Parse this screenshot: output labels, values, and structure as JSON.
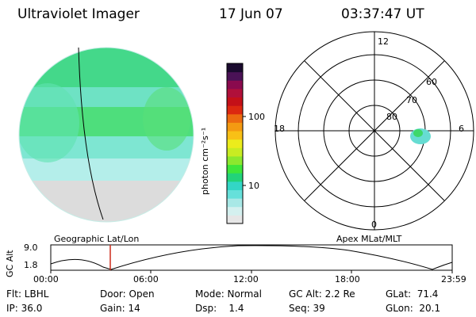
{
  "header": {
    "instrument": "Ultraviolet Imager",
    "date": "17 Jun 07",
    "time": "03:37:47 UT"
  },
  "colorbar": {
    "unit_label": "photon cm⁻²s⁻¹",
    "ticks": [
      "100",
      "10"
    ],
    "colors": [
      "#e6e6e6",
      "#d4f0ef",
      "#a8e8e6",
      "#66e0da",
      "#33d6c6",
      "#22d37a",
      "#3ee63a",
      "#8ce82e",
      "#c8ec22",
      "#ecec1c",
      "#f8c016",
      "#f49a12",
      "#ec6a10",
      "#dc2810",
      "#c41018",
      "#b0103a",
      "#8a0a4e",
      "#4a1256",
      "#1a0a2e"
    ]
  },
  "globe_panel": {
    "caption": "Geographic Lat/Lon"
  },
  "polar_panel": {
    "caption": "Apex MLat/MLT",
    "mlt_labels": {
      "top": "12",
      "left": "18",
      "right": "6",
      "bottom": "0"
    },
    "lat_labels": [
      "60",
      "70",
      "80"
    ]
  },
  "orbit_plot": {
    "ylabel": "GC Alt",
    "y_ticks": [
      "9.0",
      "1.8"
    ],
    "x_ticks": [
      "00:00",
      "06:00",
      "12:00",
      "18:00",
      "23:59"
    ],
    "current_time_marker": "03:37"
  },
  "info": {
    "flt": "Flt: LBHL",
    "ip": "IP: 36.0",
    "door": "Door: Open",
    "gain": "Gain: 14",
    "mode": "Mode: Normal",
    "dsp": "Dsp:    1.4",
    "gcalt": "GC Alt: 2.2 Re",
    "seq": "Seq: 39",
    "glat": "GLat:  71.4",
    "glon": "GLon:  20.1"
  }
}
